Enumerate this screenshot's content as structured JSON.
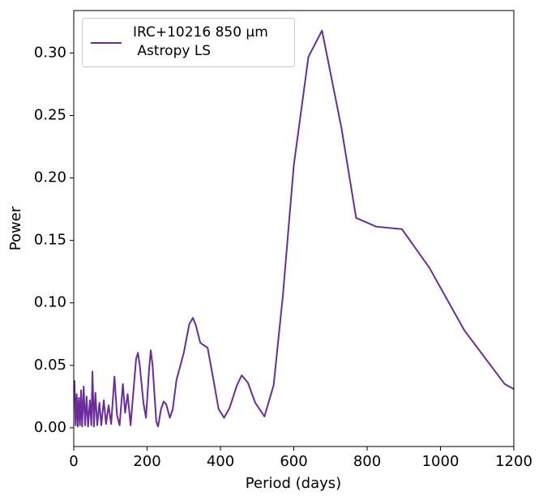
{
  "chart_data": {
    "type": "line",
    "xlabel": "Period (days)",
    "ylabel": "Power",
    "x": [
      2,
      5,
      8,
      11,
      14,
      17,
      20,
      23,
      27,
      31,
      35,
      39,
      44,
      48,
      51,
      55,
      59,
      64,
      70,
      75,
      82,
      88,
      95,
      102,
      111,
      118,
      125,
      134,
      140,
      147,
      155,
      170,
      175,
      180,
      190,
      197,
      205,
      210,
      215,
      225,
      230,
      238,
      245,
      252,
      262,
      270,
      280,
      300,
      315,
      325,
      333,
      345,
      365,
      380,
      395,
      410,
      425,
      445,
      458,
      475,
      495,
      520,
      545,
      570,
      600,
      640,
      677,
      730,
      770,
      825,
      895,
      970,
      1065,
      1175,
      1200
    ],
    "series": [
      {
        "name": "IRC+10216 850 μm\n Astropy LS",
        "color": "#6a2c9b",
        "values": [
          0.038,
          0.002,
          0.027,
          0.001,
          0.024,
          0.002,
          0.03,
          0.001,
          0.033,
          0.002,
          0.025,
          0.001,
          0.022,
          0.002,
          0.045,
          0.001,
          0.028,
          0.002,
          0.02,
          0.002,
          0.022,
          0.003,
          0.018,
          0.003,
          0.041,
          0.01,
          0.002,
          0.035,
          0.012,
          0.027,
          0.002,
          0.055,
          0.06,
          0.05,
          0.02,
          0.008,
          0.045,
          0.062,
          0.05,
          0.005,
          0.001,
          0.015,
          0.021,
          0.019,
          0.008,
          0.015,
          0.038,
          0.06,
          0.083,
          0.088,
          0.082,
          0.068,
          0.064,
          0.04,
          0.015,
          0.008,
          0.016,
          0.034,
          0.042,
          0.036,
          0.02,
          0.009,
          0.034,
          0.105,
          0.21,
          0.297,
          0.318,
          0.24,
          0.168,
          0.161,
          0.159,
          0.128,
          0.078,
          0.035,
          0.031
        ]
      }
    ],
    "xlim": [
      0,
      1200
    ],
    "ylim": [
      -0.015,
      0.334
    ],
    "xticks": [
      0,
      200,
      400,
      600,
      800,
      1000,
      1200
    ],
    "yticks": [
      {
        "value": 0,
        "label": "0.00"
      },
      0.05,
      {
        "value": 0.1,
        "label": "0.10"
      },
      0.15,
      {
        "value": 0.2,
        "label": "0.20"
      },
      0.25,
      {
        "value": 0.3,
        "label": "0.30"
      }
    ],
    "legend": "upper left",
    "grid": false
  }
}
